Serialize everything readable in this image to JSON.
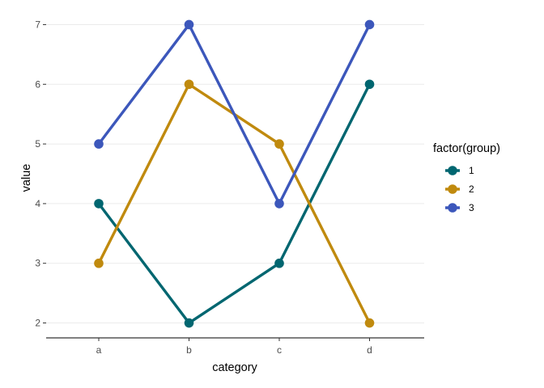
{
  "chart_data": {
    "type": "line",
    "categories": [
      "a",
      "b",
      "c",
      "d"
    ],
    "series": [
      {
        "name": "1",
        "values": [
          4,
          2,
          3,
          6
        ],
        "color": "#006670"
      },
      {
        "name": "2",
        "values": [
          3,
          6,
          5,
          2
        ],
        "color": "#C08A0E"
      },
      {
        "name": "3",
        "values": [
          5,
          7,
          4,
          7
        ],
        "color": "#3C57BB"
      }
    ],
    "xlabel": "category",
    "ylabel": "value",
    "yticks": [
      2,
      3,
      4,
      5,
      6,
      7
    ],
    "ylim": [
      1.75,
      7.25
    ],
    "grid": true,
    "legend": {
      "title": "factor(group)",
      "position": "right"
    }
  }
}
